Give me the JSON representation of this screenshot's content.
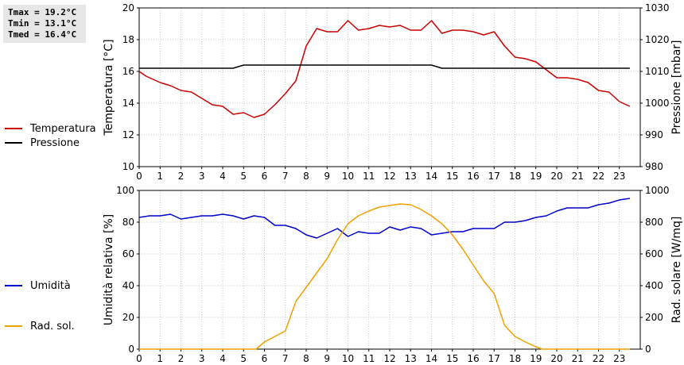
{
  "stats": {
    "tmax": "Tmax = 19.2°C",
    "tmin": "Tmin = 13.1°C",
    "tmed": "Tmed = 16.4°C"
  },
  "legend_top": [
    {
      "label": "Temperatura",
      "color": "#cc0000"
    },
    {
      "label": "Pressione",
      "color": "#000000"
    }
  ],
  "legend_bottom": [
    {
      "label": "Umidità",
      "color": "#0000cc"
    },
    {
      "label": "Rad. sol.",
      "color": "#f0a000"
    }
  ],
  "chart_data": [
    {
      "type": "line",
      "xlabel": "",
      "x_ticks": [
        0,
        1,
        2,
        3,
        4,
        5,
        6,
        7,
        8,
        9,
        10,
        11,
        12,
        13,
        14,
        15,
        16,
        17,
        18,
        19,
        20,
        21,
        22,
        23
      ],
      "xlim": [
        0,
        24
      ],
      "ylabel_left": "Temperatura [°C]",
      "ylabel_right": "Pressione [mbar]",
      "ylim_left": [
        10,
        20
      ],
      "yticks_left": [
        10,
        12,
        14,
        16,
        18,
        20
      ],
      "ylim_right": [
        980,
        1030
      ],
      "yticks_right": [
        980,
        990,
        1000,
        1010,
        1020,
        1030
      ],
      "grid": true,
      "series": [
        {
          "name": "Temperatura",
          "color": "#cc0000",
          "axis": "left",
          "x": [
            0,
            0.33,
            1,
            1.5,
            2,
            2.5,
            3,
            3.5,
            4,
            4.5,
            5,
            5.5,
            6,
            6.5,
            7,
            7.5,
            8,
            8.5,
            9,
            9.5,
            10,
            10.5,
            11,
            11.5,
            12,
            12.5,
            13,
            13.5,
            14,
            14.5,
            15,
            15.5,
            16,
            16.5,
            17,
            17.5,
            18,
            18.5,
            19,
            19.5,
            20,
            20.5,
            21,
            21.5,
            22,
            22.5,
            23,
            23.5
          ],
          "y": [
            16.0,
            15.7,
            15.3,
            15.1,
            14.8,
            14.7,
            14.3,
            13.9,
            13.8,
            13.3,
            13.4,
            13.1,
            13.3,
            13.9,
            14.6,
            15.4,
            17.6,
            18.7,
            18.5,
            18.5,
            19.2,
            18.6,
            18.7,
            18.9,
            18.8,
            18.9,
            18.6,
            18.6,
            19.2,
            18.4,
            18.6,
            18.6,
            18.5,
            18.3,
            18.5,
            17.6,
            16.9,
            16.8,
            16.6,
            16.1,
            15.6,
            15.6,
            15.5,
            15.3,
            14.8,
            14.7,
            14.1,
            13.8
          ]
        },
        {
          "name": "Pressione",
          "color": "#000000",
          "axis": "right",
          "x": [
            0,
            4.5,
            5,
            14,
            14.5,
            23.5
          ],
          "y": [
            1011,
            1011,
            1012,
            1012,
            1011,
            1011
          ]
        }
      ]
    },
    {
      "type": "line",
      "xlabel": "",
      "x_ticks": [
        0,
        1,
        2,
        3,
        4,
        5,
        6,
        7,
        8,
        9,
        10,
        11,
        12,
        13,
        14,
        15,
        16,
        17,
        18,
        19,
        20,
        21,
        22,
        23
      ],
      "xlim": [
        0,
        24
      ],
      "ylabel_left": "Umidità relativa [%]",
      "ylabel_right": "Rad. solare [W/mq]",
      "ylim_left": [
        0,
        100
      ],
      "yticks_left": [
        0,
        20,
        40,
        60,
        80,
        100
      ],
      "ylim_right": [
        0,
        1000
      ],
      "yticks_right": [
        0,
        200,
        400,
        600,
        800,
        1000
      ],
      "grid": true,
      "series": [
        {
          "name": "Umidità",
          "color": "#0000cc",
          "axis": "left",
          "x": [
            0,
            0.5,
            1,
            1.5,
            2,
            2.5,
            3,
            3.5,
            4,
            4.5,
            5,
            5.5,
            6,
            6.5,
            7,
            7.5,
            8,
            8.5,
            9,
            9.5,
            10,
            10.5,
            11,
            11.5,
            12,
            12.5,
            13,
            13.5,
            14,
            14.5,
            15,
            15.5,
            16,
            16.5,
            17,
            17.5,
            18,
            18.5,
            19,
            19.5,
            20,
            20.5,
            21,
            21.5,
            22,
            22.5,
            23,
            23.5
          ],
          "y": [
            83,
            84,
            84,
            85,
            82,
            83,
            84,
            84,
            85,
            84,
            82,
            84,
            83,
            78,
            78,
            76,
            72,
            70,
            73,
            76,
            71,
            74,
            73,
            73,
            77,
            75,
            77,
            76,
            72,
            73,
            74,
            74,
            76,
            76,
            76,
            80,
            80,
            81,
            83,
            84,
            87,
            89,
            89,
            89,
            91,
            92,
            94,
            95
          ]
        },
        {
          "name": "Rad. sol.",
          "color": "#f0a000",
          "axis": "right",
          "x": [
            0,
            1,
            2,
            3,
            4,
            5,
            5.6,
            6,
            6.5,
            7,
            7.5,
            8,
            8.5,
            9,
            9.5,
            10,
            10.5,
            11,
            11.5,
            12,
            12.5,
            13,
            13.5,
            14,
            14.5,
            15,
            15.5,
            16,
            16.5,
            17,
            17.5,
            18,
            18.5,
            19,
            19.3,
            20,
            21,
            22,
            23,
            23.5
          ],
          "y": [
            0,
            0,
            0,
            0,
            0,
            0,
            0,
            45,
            80,
            115,
            300,
            390,
            480,
            570,
            690,
            790,
            840,
            870,
            895,
            905,
            915,
            910,
            880,
            840,
            790,
            720,
            630,
            530,
            430,
            350,
            150,
            80,
            45,
            15,
            0,
            0,
            0,
            0,
            0,
            0
          ]
        }
      ]
    }
  ]
}
